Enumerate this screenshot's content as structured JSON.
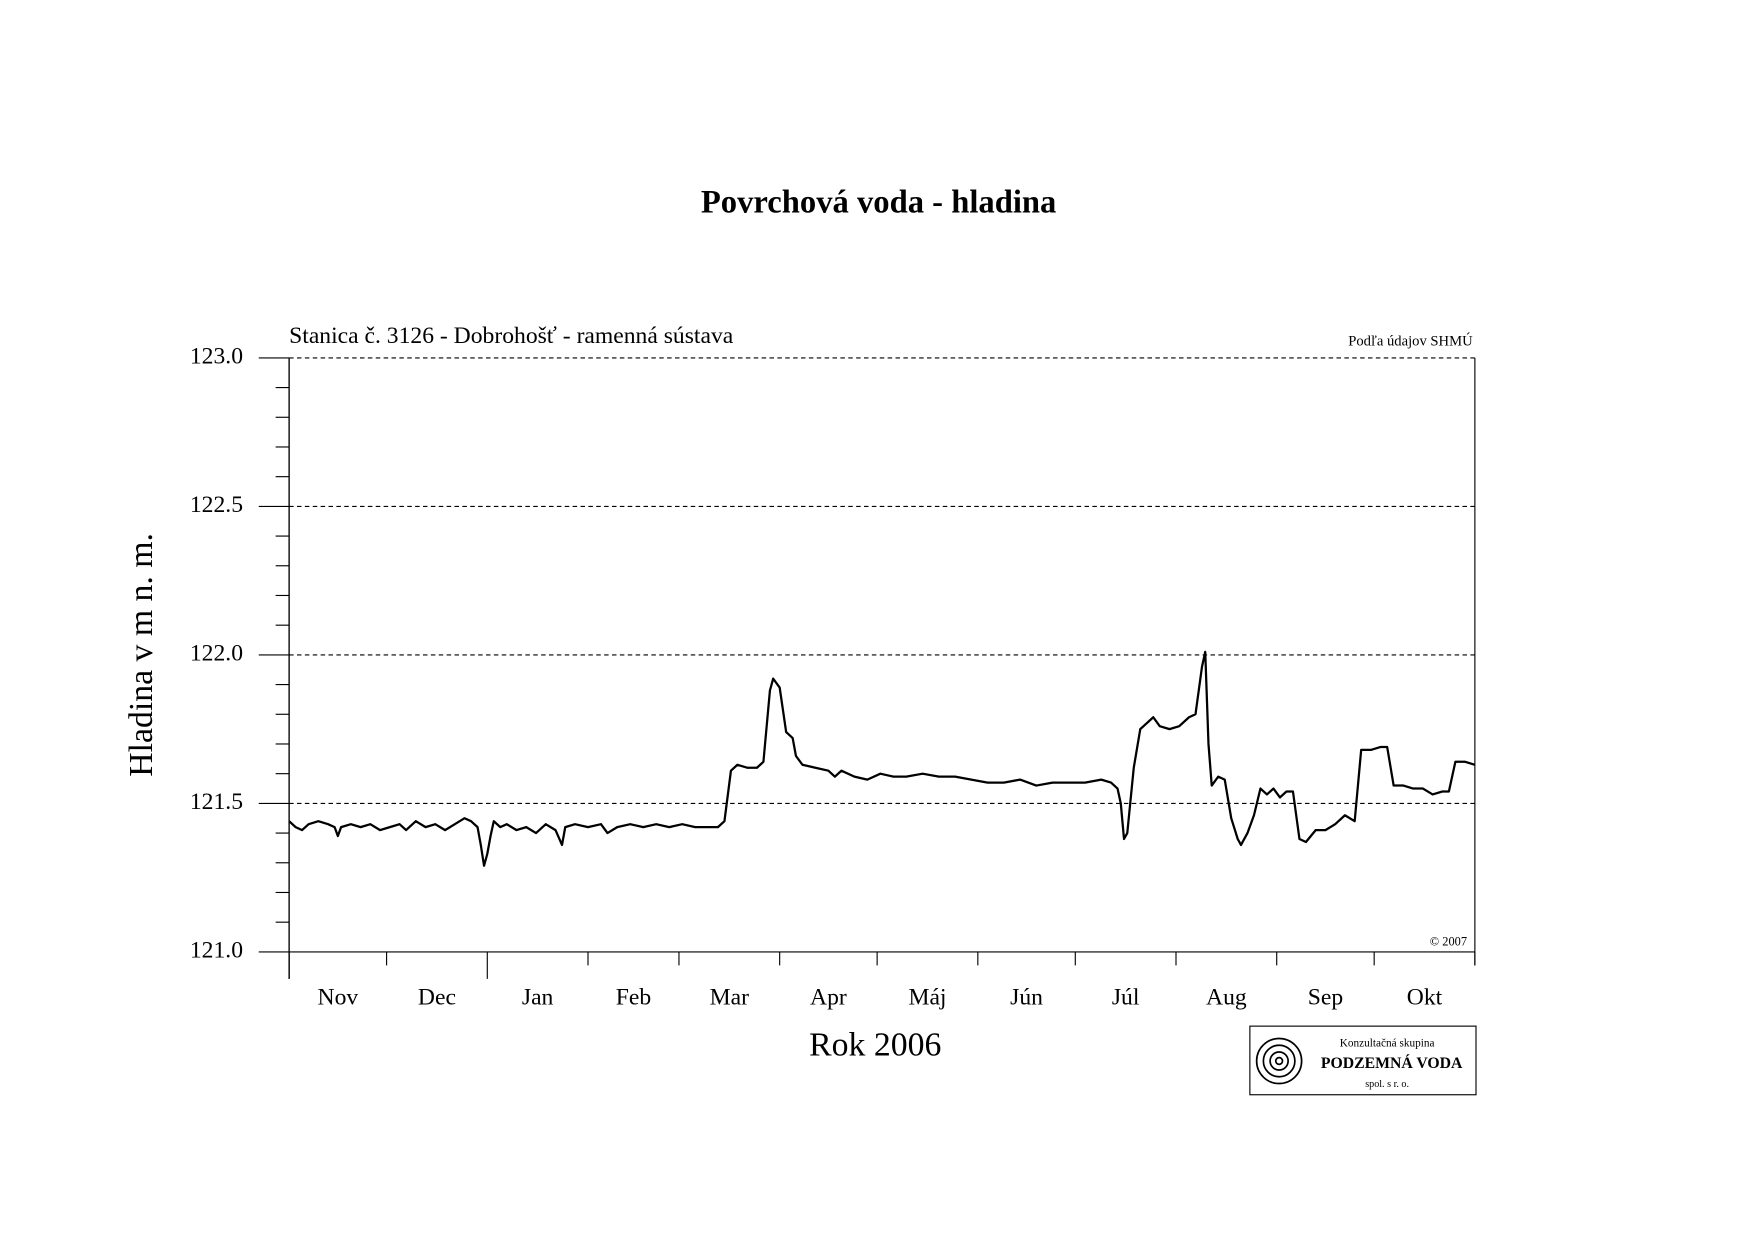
{
  "chart_data": {
    "type": "line",
    "title": "Povrchová voda - hladina",
    "subtitle": "Stanica č. 3126 - Dobrohošť - ramenná sústava",
    "source": "Podľa údajov SHMÚ",
    "copyright": "© 2007",
    "ylabel": "Hladina v m n. m.",
    "xlabel": "Rok 2006",
    "logo": {
      "line1": "Konzultačná skupina",
      "line2": "PODZEMNÁ VODA",
      "line3": "spol. s r. o."
    },
    "categories": [
      "Nov",
      "Dec",
      "Jan",
      "Feb",
      "Mar",
      "Apr",
      "Máj",
      "Jún",
      "Júl",
      "Aug",
      "Sep",
      "Okt"
    ],
    "xlim": [
      0,
      365
    ],
    "xticks": [
      0,
      30,
      61,
      92,
      120,
      151,
      181,
      212,
      242,
      273,
      304,
      334,
      365
    ],
    "ylim": [
      121,
      123
    ],
    "yticks": [
      {
        "value": 121,
        "label": "121.0"
      },
      {
        "value": 121.5,
        "label": "121.5"
      },
      {
        "value": 122,
        "label": "122.0"
      },
      {
        "value": 122.5,
        "label": "122.5"
      },
      {
        "value": 123,
        "label": "123.0"
      }
    ],
    "yminorticks": [
      121.1,
      121.2,
      121.3,
      121.4,
      121.6,
      121.7,
      121.8,
      121.9,
      122.1,
      122.2,
      122.3,
      122.4,
      122.6,
      122.7,
      122.8,
      122.9
    ],
    "grid": true,
    "color": "#000000",
    "x": [
      0,
      2,
      4,
      6,
      9,
      12,
      14,
      15,
      16,
      19,
      22,
      25,
      28,
      31,
      34,
      36,
      39,
      42,
      45,
      48,
      51,
      54,
      56,
      58,
      59,
      60,
      61,
      62,
      63,
      65,
      67,
      70,
      73,
      76,
      79,
      82,
      84,
      85,
      88,
      92,
      96,
      98,
      101,
      105,
      109,
      113,
      117,
      121,
      125,
      129,
      132,
      134,
      136,
      138,
      141,
      144,
      146,
      148,
      149,
      151,
      153,
      155,
      156,
      158,
      162,
      166,
      168,
      170,
      174,
      178,
      182,
      186,
      190,
      195,
      200,
      205,
      210,
      215,
      220,
      225,
      230,
      235,
      240,
      245,
      250,
      253,
      255,
      256,
      257,
      258,
      260,
      262,
      264,
      266,
      268,
      271,
      274,
      277,
      279,
      281,
      282,
      283,
      284,
      286,
      288,
      290,
      292,
      293,
      295,
      297,
      299,
      301,
      303,
      305,
      307,
      309,
      311,
      313,
      316,
      319,
      322,
      325,
      328,
      330,
      333,
      336,
      338,
      340,
      343,
      346,
      349,
      352,
      355,
      357,
      359,
      362,
      365
    ],
    "values": [
      121.44,
      121.42,
      121.41,
      121.43,
      121.44,
      121.43,
      121.42,
      121.39,
      121.42,
      121.43,
      121.42,
      121.43,
      121.41,
      121.42,
      121.43,
      121.41,
      121.44,
      121.42,
      121.43,
      121.41,
      121.43,
      121.45,
      121.44,
      121.42,
      121.36,
      121.29,
      121.33,
      121.39,
      121.44,
      121.42,
      121.43,
      121.41,
      121.42,
      121.4,
      121.43,
      121.41,
      121.36,
      121.42,
      121.43,
      121.42,
      121.43,
      121.4,
      121.42,
      121.43,
      121.42,
      121.43,
      121.42,
      121.43,
      121.42,
      121.42,
      121.42,
      121.44,
      121.61,
      121.63,
      121.62,
      121.62,
      121.64,
      121.88,
      121.92,
      121.89,
      121.74,
      121.72,
      121.66,
      121.63,
      121.62,
      121.61,
      121.59,
      121.61,
      121.59,
      121.58,
      121.6,
      121.59,
      121.59,
      121.6,
      121.59,
      121.59,
      121.58,
      121.57,
      121.57,
      121.58,
      121.56,
      121.57,
      121.57,
      121.57,
      121.58,
      121.57,
      121.55,
      121.5,
      121.38,
      121.4,
      121.62,
      121.75,
      121.77,
      121.79,
      121.76,
      121.75,
      121.76,
      121.79,
      121.8,
      121.96,
      122.01,
      121.7,
      121.56,
      121.59,
      121.58,
      121.45,
      121.38,
      121.36,
      121.4,
      121.46,
      121.55,
      121.53,
      121.55,
      121.52,
      121.54,
      121.54,
      121.38,
      121.37,
      121.41,
      121.41,
      121.43,
      121.46,
      121.44,
      121.68,
      121.68,
      121.69,
      121.69,
      121.56,
      121.56,
      121.55,
      121.55,
      121.53,
      121.54,
      121.54,
      121.64,
      121.64,
      121.63
    ]
  }
}
